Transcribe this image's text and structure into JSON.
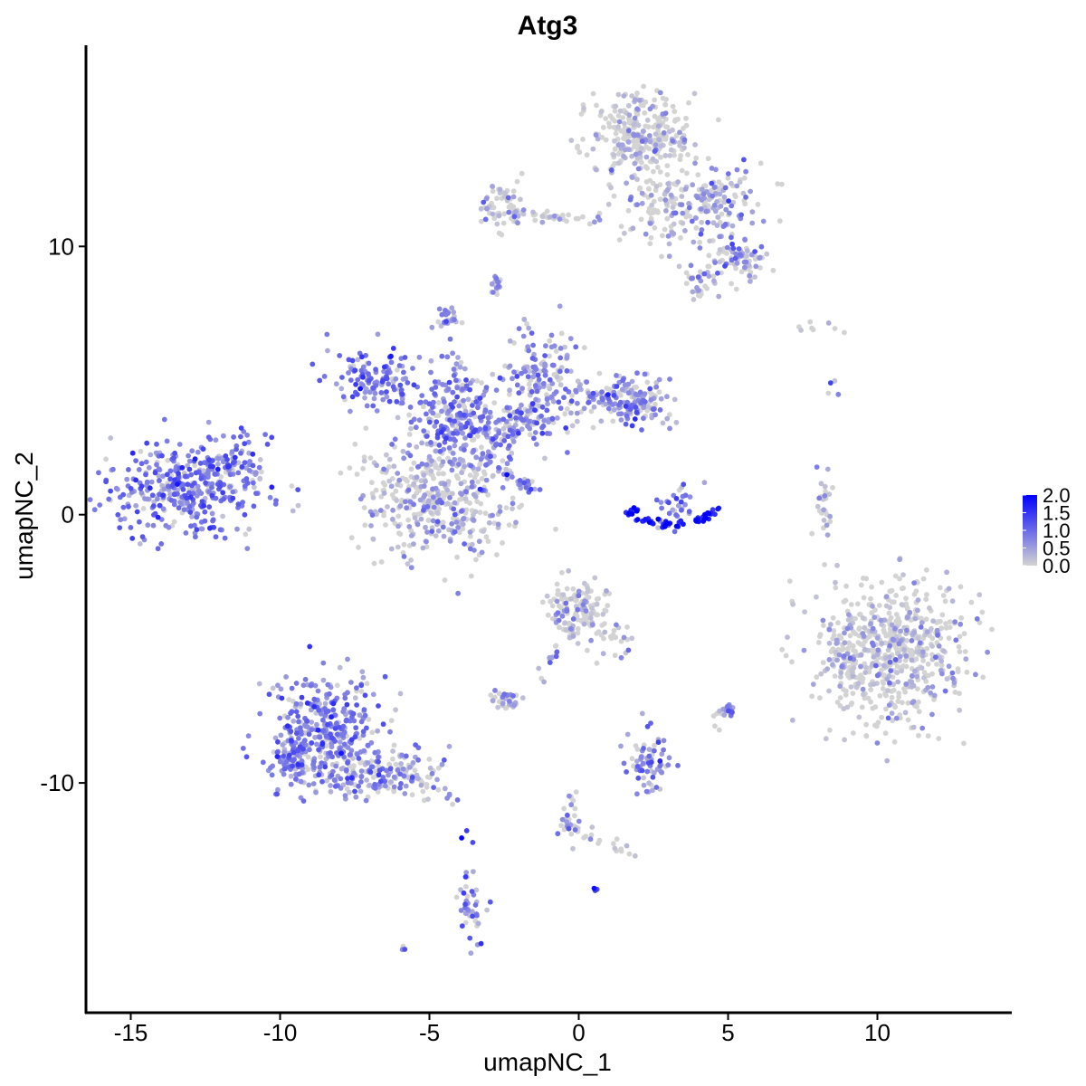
{
  "chart_data": {
    "type": "scatter",
    "title": "Atg3",
    "xlabel": "umapNC_1",
    "ylabel": "umapNC_2",
    "xlim": [
      -16.5,
      14.5
    ],
    "ylim": [
      -18.6,
      17.5
    ],
    "x_ticks": [
      -15,
      -10,
      -5,
      0,
      5,
      10
    ],
    "x_tick_labels": [
      "-15",
      "-10",
      "-5",
      "0",
      "5",
      "10"
    ],
    "y_ticks": [
      10,
      0,
      -10
    ],
    "y_tick_labels": [
      "10",
      "0",
      "-10"
    ],
    "grid": false,
    "legend": {
      "placement": "right",
      "type": "color-gradient",
      "range": [
        0.0,
        2.0
      ],
      "labels": [
        "2.0",
        "1.5",
        "1.0",
        "0.5",
        "0.0"
      ],
      "low_color": "#d3d3d3",
      "high_color": "#0000ff"
    },
    "clusters": [
      {
        "cx": -13.0,
        "cy": 1.0,
        "sx": 1.3,
        "sy": 0.9,
        "n": 380,
        "expr": 0.85
      },
      {
        "cx": -12.0,
        "cy": 2.0,
        "sx": 0.6,
        "sy": 0.5,
        "n": 40,
        "expr": 0.8
      },
      {
        "cx": -11.0,
        "cy": 1.5,
        "sx": 0.4,
        "sy": 0.3,
        "n": 20,
        "expr": 0.4
      },
      {
        "cx": -4.8,
        "cy": 0.6,
        "sx": 1.3,
        "sy": 1.1,
        "n": 420,
        "expr": 0.45
      },
      {
        "cx": -4.2,
        "cy": 3.6,
        "sx": 0.8,
        "sy": 0.9,
        "n": 220,
        "expr": 0.75
      },
      {
        "cx": -6.8,
        "cy": 5.0,
        "sx": 0.8,
        "sy": 0.6,
        "n": 120,
        "expr": 0.85
      },
      {
        "cx": -1.2,
        "cy": 5.0,
        "sx": 0.7,
        "sy": 1.0,
        "n": 160,
        "expr": 0.7
      },
      {
        "cx": 1.0,
        "cy": 4.4,
        "sx": 0.8,
        "sy": 0.4,
        "n": 80,
        "expr": 0.55
      },
      {
        "cx": 2.0,
        "cy": 4.1,
        "sx": 0.5,
        "sy": 0.5,
        "n": 100,
        "expr": 0.6
      },
      {
        "cx": -2.3,
        "cy": 3.3,
        "sx": 0.9,
        "sy": 0.5,
        "n": 110,
        "expr": 0.7
      },
      {
        "cx": -4.4,
        "cy": 7.3,
        "sx": 0.2,
        "sy": 0.2,
        "n": 25,
        "expr": 0.7
      },
      {
        "cx": 2.1,
        "cy": 14.0,
        "sx": 0.9,
        "sy": 0.8,
        "n": 300,
        "expr": 0.3
      },
      {
        "cx": 4.7,
        "cy": 11.5,
        "sx": 0.7,
        "sy": 0.7,
        "n": 150,
        "expr": 0.55
      },
      {
        "cx": 5.5,
        "cy": 9.5,
        "sx": 0.4,
        "sy": 0.35,
        "n": 60,
        "expr": 0.5
      },
      {
        "cx": 2.6,
        "cy": 11.5,
        "sx": 0.6,
        "sy": 1.0,
        "n": 90,
        "expr": 0.35
      },
      {
        "cx": 4.2,
        "cy": 8.9,
        "sx": 0.4,
        "sy": 0.4,
        "n": 40,
        "expr": 0.45
      },
      {
        "cx": -2.5,
        "cy": 11.5,
        "sx": 0.4,
        "sy": 0.4,
        "n": 60,
        "expr": 0.35
      },
      {
        "cx": -2.8,
        "cy": 8.6,
        "sx": 0.1,
        "sy": 0.15,
        "n": 10,
        "expr": 0.6
      },
      {
        "cx": 3.2,
        "cy": 0.3,
        "sx": 0.4,
        "sy": 0.4,
        "n": 30,
        "expr": 0.8
      },
      {
        "cx": 8.2,
        "cy": 0.2,
        "sx": 0.15,
        "sy": 0.6,
        "n": 25,
        "expr": 0.4
      },
      {
        "cx": 10.5,
        "cy": -5.0,
        "sx": 1.2,
        "sy": 1.3,
        "n": 620,
        "expr": 0.3
      },
      {
        "cx": 8.8,
        "cy": -5.5,
        "sx": 0.3,
        "sy": 0.7,
        "n": 40,
        "expr": 0.3
      },
      {
        "cx": -8.5,
        "cy": -8.0,
        "sx": 0.9,
        "sy": 1.1,
        "n": 360,
        "expr": 0.75
      },
      {
        "cx": -9.6,
        "cy": -9.3,
        "sx": 0.5,
        "sy": 0.4,
        "n": 80,
        "expr": 0.75
      },
      {
        "cx": -7.6,
        "cy": -10.0,
        "sx": 0.6,
        "sy": 0.3,
        "n": 50,
        "expr": 0.8
      },
      {
        "cx": -6.0,
        "cy": -9.5,
        "sx": 0.8,
        "sy": 0.5,
        "n": 90,
        "expr": 0.55
      },
      {
        "cx": 0.0,
        "cy": -3.5,
        "sx": 0.5,
        "sy": 0.5,
        "n": 130,
        "expr": 0.35
      },
      {
        "cx": 1.0,
        "cy": -4.6,
        "sx": 0.4,
        "sy": 0.5,
        "n": 30,
        "expr": 0.3
      },
      {
        "cx": -2.5,
        "cy": -6.9,
        "sx": 0.3,
        "sy": 0.2,
        "n": 35,
        "expr": 0.45
      },
      {
        "cx": 2.3,
        "cy": -9.3,
        "sx": 0.4,
        "sy": 0.5,
        "n": 70,
        "expr": 0.75
      },
      {
        "cx": 5.0,
        "cy": -7.3,
        "sx": 0.12,
        "sy": 0.12,
        "n": 15,
        "expr": 0.7
      },
      {
        "cx": -3.6,
        "cy": -14.8,
        "sx": 0.2,
        "sy": 0.7,
        "n": 40,
        "expr": 0.7
      },
      {
        "cx": -0.3,
        "cy": -11.2,
        "sx": 0.2,
        "sy": 0.6,
        "n": 30,
        "expr": 0.55
      }
    ],
    "paths": [
      {
        "x1": -9.0,
        "y1": 1.5,
        "x2": -9.0,
        "y2": 1.5,
        "n": 0,
        "expr": 0.0
      },
      {
        "x1": -3.2,
        "y1": 2.2,
        "x2": -1.2,
        "y2": 0.7,
        "n": 35,
        "expr": 0.7
      },
      {
        "x1": -4.2,
        "y1": 6.5,
        "x2": -3.9,
        "y2": 4.4,
        "n": 15,
        "expr": 0.75
      },
      {
        "x1": -2.6,
        "y1": 11.3,
        "x2": 0.8,
        "y2": 11.0,
        "n": 40,
        "expr": 0.3
      },
      {
        "x1": -6.2,
        "y1": -9.6,
        "x2": -4.0,
        "y2": -10.5,
        "n": 25,
        "expr": 0.6
      },
      {
        "x1": -1.3,
        "y1": -6.0,
        "x2": 0.0,
        "y2": -3.8,
        "n": 20,
        "expr": 0.55
      },
      {
        "x1": 0.0,
        "y1": -11.8,
        "x2": 2.4,
        "y2": -12.7,
        "n": 18,
        "expr": 0.3
      },
      {
        "x1": 4.5,
        "y1": -7.9,
        "x2": 4.8,
        "y2": -7.3,
        "n": 8,
        "expr": 0.4
      },
      {
        "x1": -2.7,
        "y1": 9.0,
        "x2": -2.7,
        "y2": 8.0,
        "n": 6,
        "expr": 0.4
      },
      {
        "x1": 8.5,
        "y1": 5.0,
        "x2": 8.6,
        "y2": 4.6,
        "n": 4,
        "expr": 0.7
      },
      {
        "x1": 7.0,
        "y1": 6.9,
        "x2": 9.8,
        "y2": 6.8,
        "n": 8,
        "expr": 0.1
      },
      {
        "x1": -3.8,
        "y1": -12.0,
        "x2": -3.7,
        "y2": -12.3,
        "n": 3,
        "expr": 0.9
      },
      {
        "x1": 0.6,
        "y1": -13.9,
        "x2": 0.6,
        "y2": -14.0,
        "n": 3,
        "expr": 1.6
      },
      {
        "x1": -6.0,
        "y1": -16.0,
        "x2": -5.9,
        "y2": -16.1,
        "n": 3,
        "expr": 0.6
      }
    ],
    "arc": {
      "cx": 3.1,
      "cy": 0.6,
      "r": 1.6,
      "from_deg": 200,
      "to_deg": 345,
      "n": 60,
      "expr": 1.75
    }
  }
}
